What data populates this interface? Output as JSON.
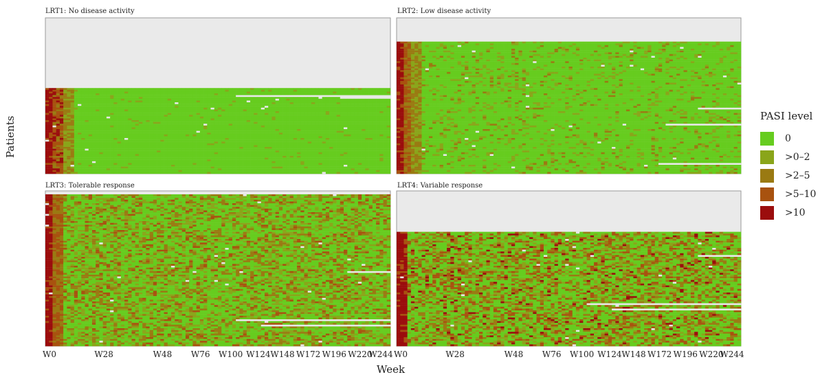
{
  "chart_data": {
    "type": "heatmap",
    "ylabel": "Patients",
    "xlabel": "Week",
    "x_ticks": [
      "W0",
      "W28",
      "W48",
      "W76",
      "W100",
      "W124",
      "W148",
      "W172",
      "W196",
      "W220",
      "W244"
    ],
    "legend": {
      "title": "PASI level",
      "position": "right",
      "levels": [
        {
          "label": "0",
          "color": "#66cc1f"
        },
        {
          "label": ">0–2",
          "color": "#8aa51a"
        },
        {
          "label": ">2–5",
          "color": "#9a7a12"
        },
        {
          "label": ">5–10",
          "color": "#a8520f"
        },
        {
          "label": ">10",
          "color": "#9b0d0d"
        }
      ]
    },
    "panels": [
      {
        "title": "LRT1: No disease activity",
        "pattern": "no_activity",
        "filled_fraction": 0.55
      },
      {
        "title": "LRT2: Low disease activity",
        "pattern": "low_activity",
        "filled_fraction": 0.85
      },
      {
        "title": "LRT3: Tolerable response",
        "pattern": "tolerable",
        "filled_fraction": 0.98
      },
      {
        "title": "LRT4: Variable response",
        "pattern": "variable",
        "filled_fraction": 0.74
      }
    ],
    "missing_color": "#e8e8e8",
    "background_color": "#eaeaea"
  }
}
